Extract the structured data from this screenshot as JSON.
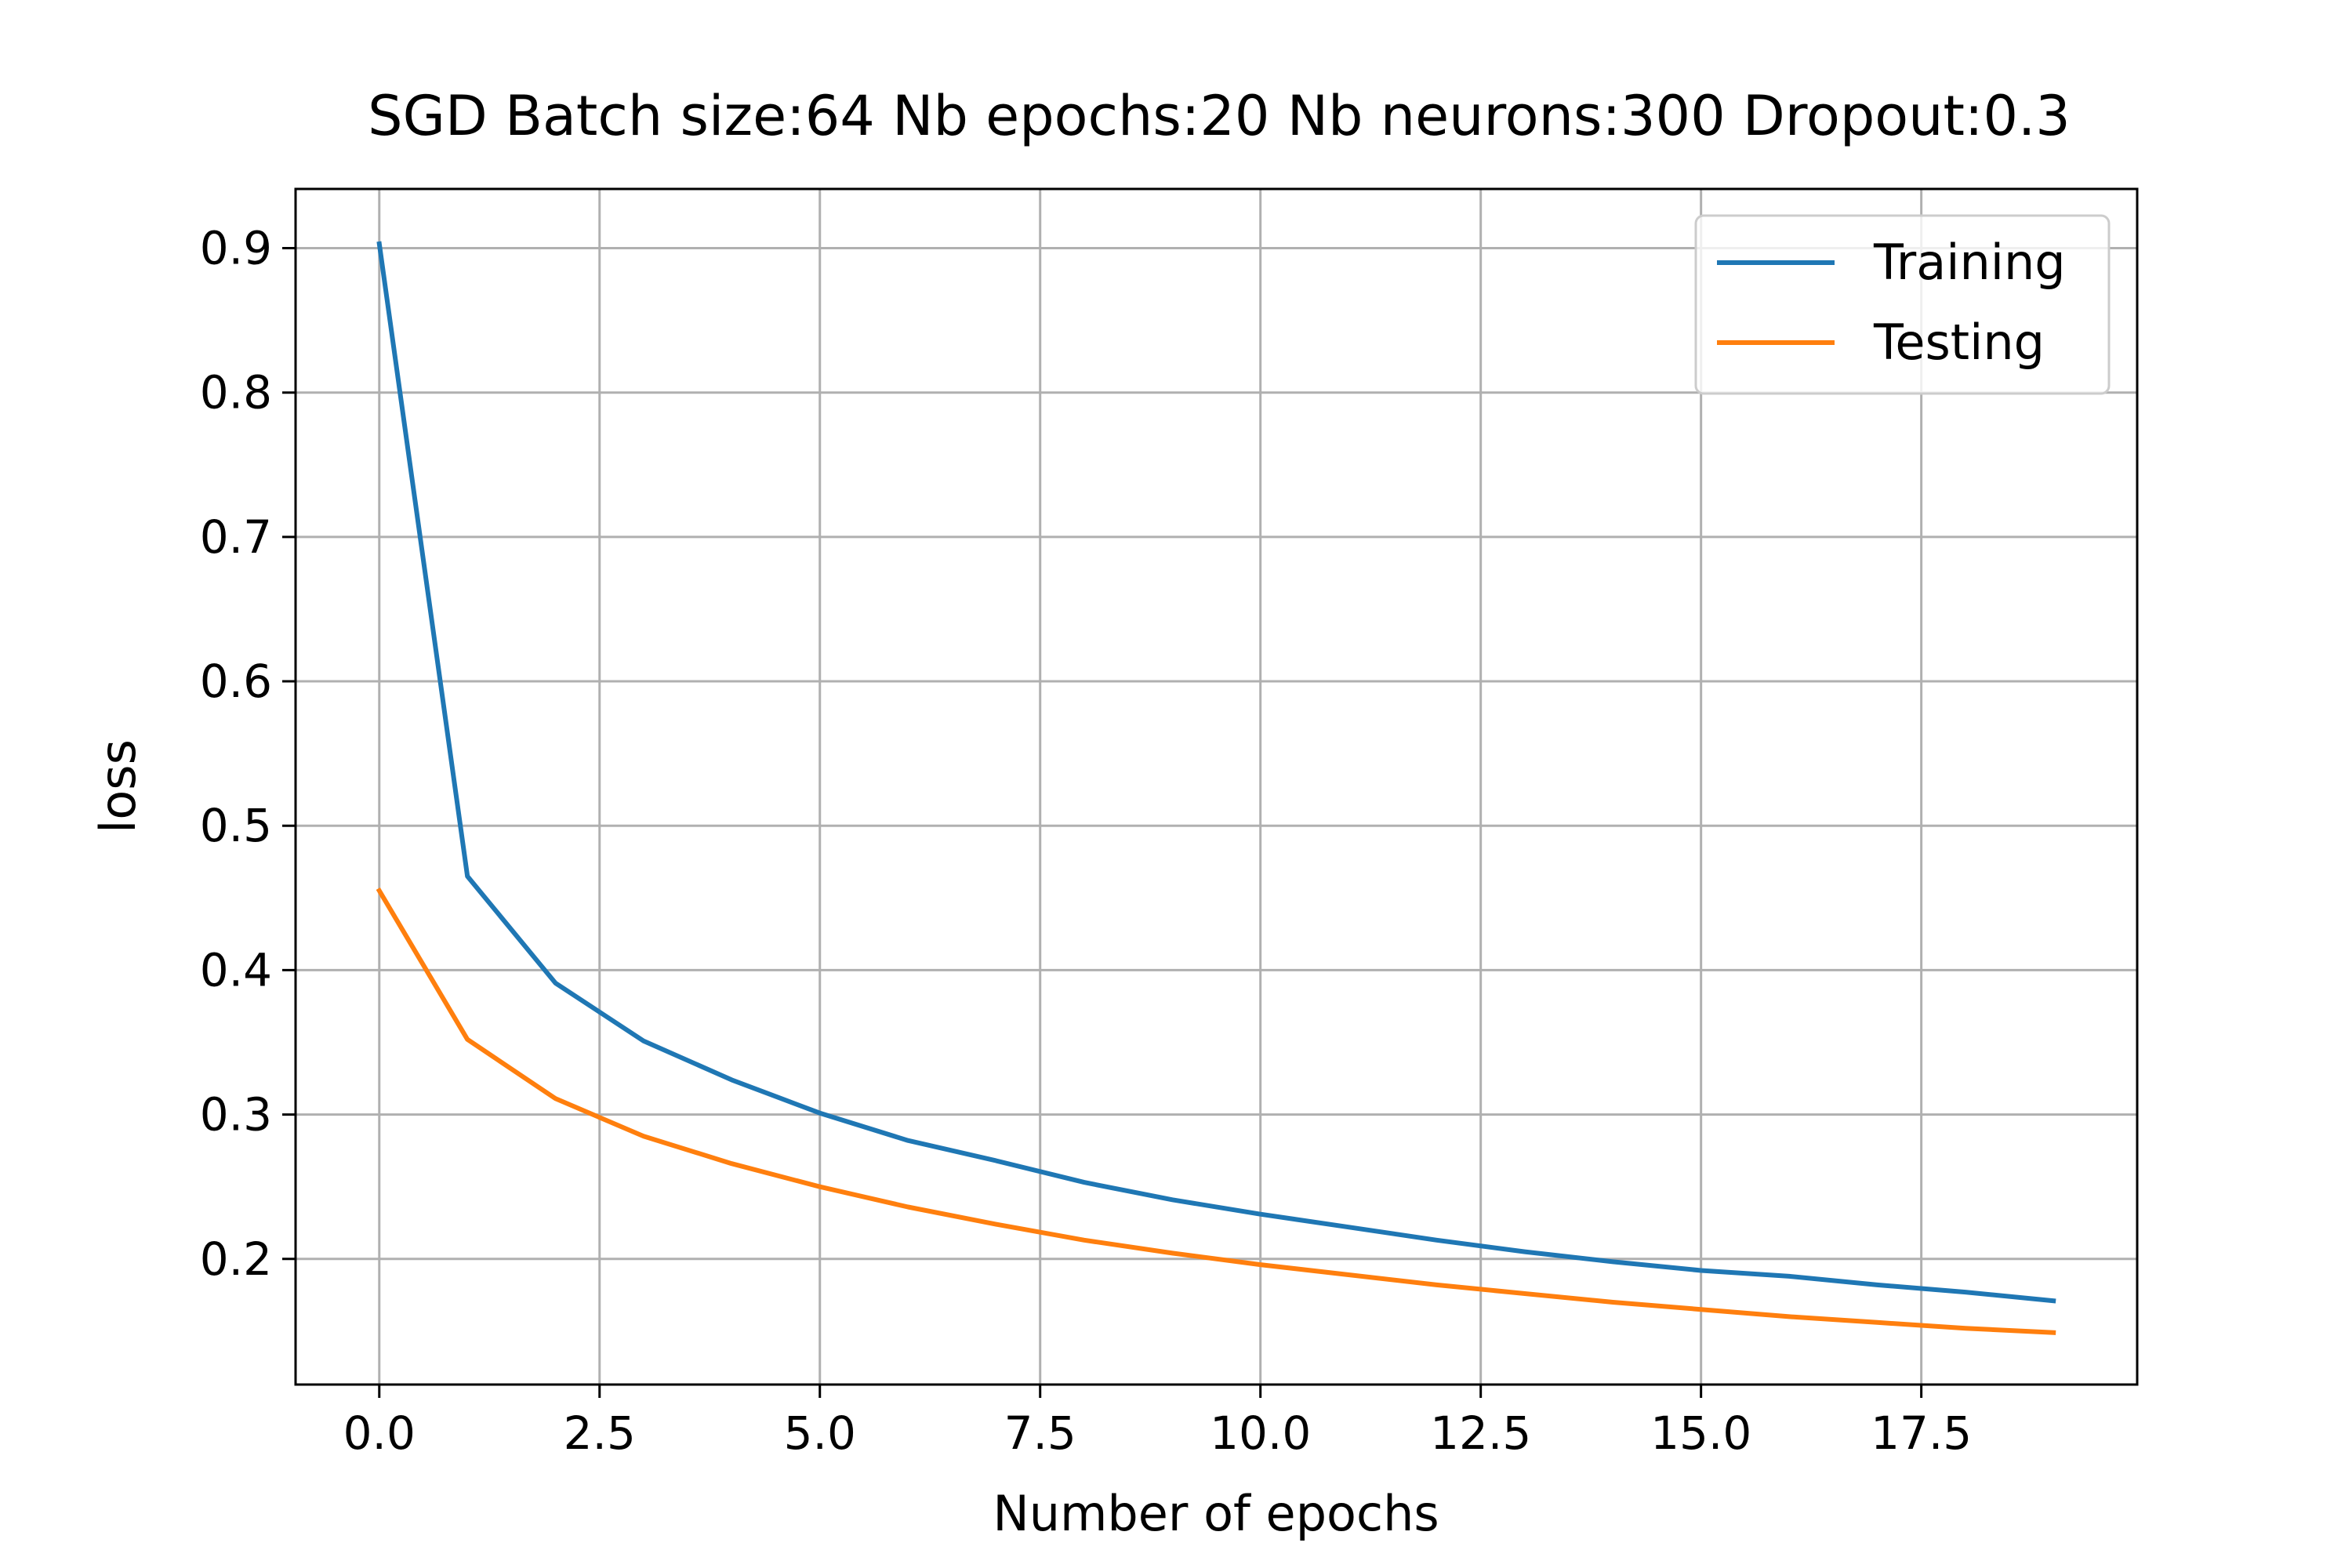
{
  "chart_data": {
    "type": "line",
    "title": "SGD Batch size:64 Nb epochs:20 Nb neurons:300 Dropout:0.3",
    "xlabel": "Number of epochs",
    "ylabel": "loss",
    "x": [
      0,
      1,
      2,
      3,
      4,
      5,
      6,
      7,
      8,
      9,
      10,
      11,
      12,
      13,
      14,
      15,
      16,
      17,
      18,
      19
    ],
    "xlim": [
      -0.95,
      19.95
    ],
    "ylim": [
      0.113,
      0.941
    ],
    "x_ticks": [
      0.0,
      2.5,
      5.0,
      7.5,
      10.0,
      12.5,
      15.0,
      17.5
    ],
    "x_tick_labels": [
      "0.0",
      "2.5",
      "5.0",
      "7.5",
      "10.0",
      "12.5",
      "15.0",
      "17.5"
    ],
    "y_ticks": [
      0.2,
      0.3,
      0.4,
      0.5,
      0.6,
      0.7,
      0.8,
      0.9
    ],
    "y_tick_labels": [
      "0.2",
      "0.3",
      "0.4",
      "0.5",
      "0.6",
      "0.7",
      "0.8",
      "0.9"
    ],
    "grid": true,
    "legend_position": "top-right",
    "series": [
      {
        "name": "Training",
        "color": "#1f77b4",
        "values": [
          0.903,
          0.465,
          0.391,
          0.351,
          0.324,
          0.301,
          0.282,
          0.268,
          0.253,
          0.241,
          0.231,
          0.222,
          0.213,
          0.205,
          0.198,
          0.192,
          0.188,
          0.182,
          0.177,
          0.171
        ]
      },
      {
        "name": "Testing",
        "color": "#ff7f0e",
        "values": [
          0.455,
          0.352,
          0.311,
          0.285,
          0.266,
          0.25,
          0.236,
          0.224,
          0.213,
          0.204,
          0.196,
          0.189,
          0.182,
          0.176,
          0.17,
          0.165,
          0.16,
          0.156,
          0.152,
          0.149
        ]
      }
    ]
  }
}
